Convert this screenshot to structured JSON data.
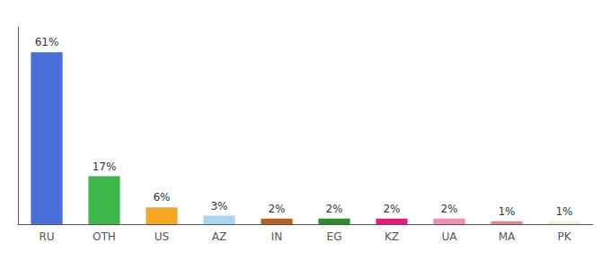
{
  "chart_data": {
    "type": "bar",
    "categories": [
      "RU",
      "OTH",
      "US",
      "AZ",
      "IN",
      "EG",
      "KZ",
      "UA",
      "MA",
      "PK"
    ],
    "values": [
      61,
      17,
      6,
      3,
      2,
      2,
      2,
      2,
      1,
      1
    ],
    "value_labels": [
      "61%",
      "17%",
      "6%",
      "3%",
      "2%",
      "2%",
      "2%",
      "2%",
      "1%",
      "1%"
    ],
    "colors": [
      "#4a6fdc",
      "#3db84a",
      "#f5a623",
      "#a8d8f0",
      "#b8601e",
      "#2e8b2e",
      "#e8197a",
      "#f48fb0",
      "#f08080",
      "#f5f0d8"
    ],
    "ylim": [
      0,
      70
    ],
    "grid": false,
    "data_labels": true,
    "tick_labels": "x"
  }
}
